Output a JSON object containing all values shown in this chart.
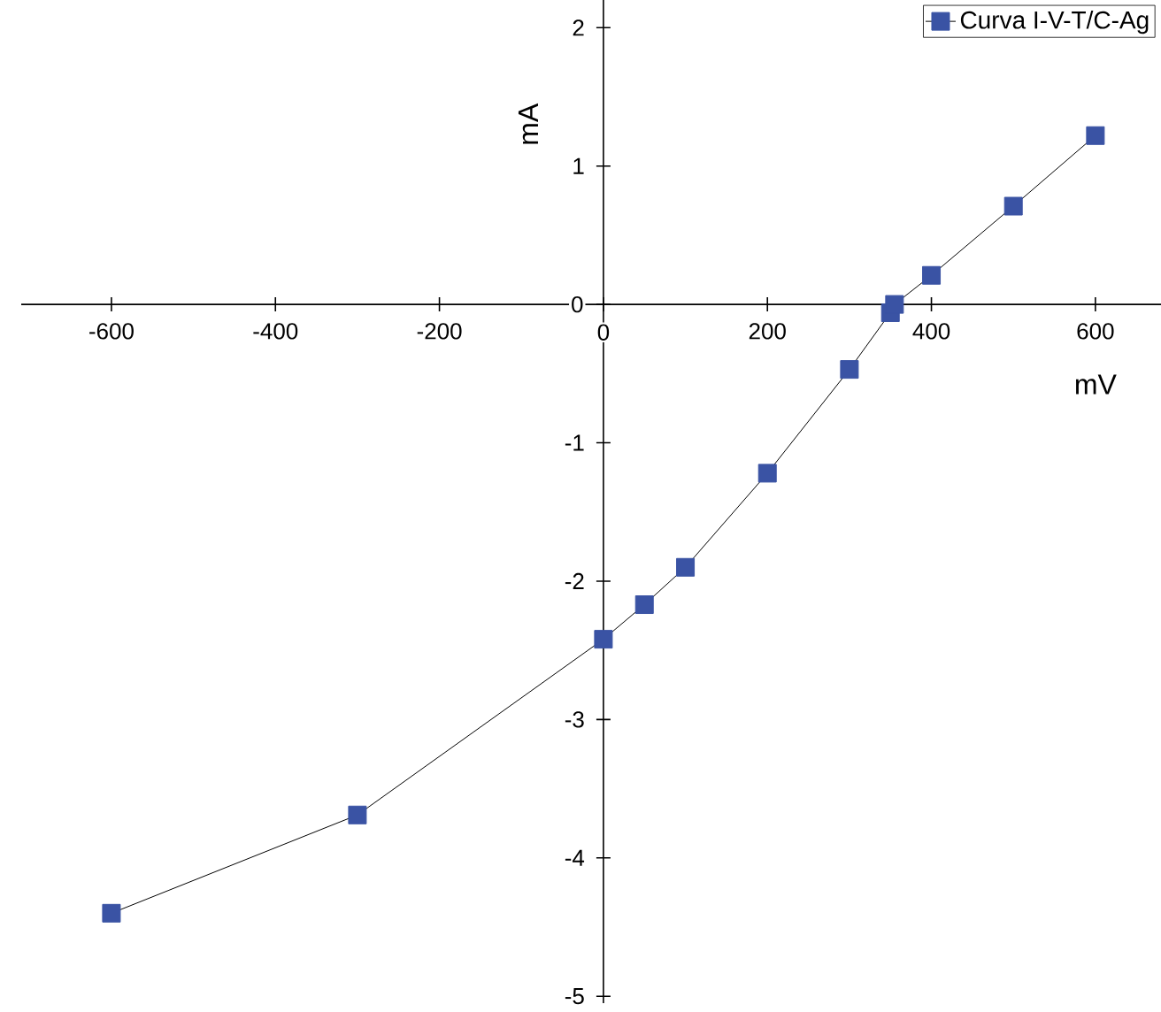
{
  "chart_data": {
    "type": "line",
    "xlabel": "mV",
    "ylabel": "mA",
    "x": [
      -600,
      -300,
      0,
      50,
      100,
      200,
      300,
      350,
      355,
      400,
      500,
      600
    ],
    "series": [
      {
        "name": "Curva I-V-T/C-Ag",
        "color": "#3a53a4",
        "values": [
          -4.4,
          -3.69,
          -2.42,
          -2.17,
          -1.9,
          -1.22,
          -0.47,
          -0.06,
          0.0,
          0.21,
          0.71,
          1.22
        ]
      }
    ],
    "xlim": [
      -710,
      680
    ],
    "ylim": [
      -5.05,
      2.2
    ],
    "xticks": [
      -600,
      -400,
      -200,
      0,
      200,
      400,
      600
    ],
    "yticks": [
      -5,
      -4,
      -3,
      -2,
      -1,
      0,
      1,
      2
    ],
    "grid": false,
    "legend": "top right",
    "marker": "square",
    "line_style": "solid"
  }
}
